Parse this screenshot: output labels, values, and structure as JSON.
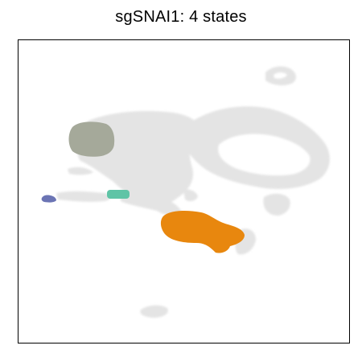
{
  "chart_data": {
    "type": "scatter",
    "title": "sgSNAI1: 4 states",
    "xlabel": "",
    "ylabel": "",
    "ticks": false,
    "grid": false,
    "legend": "none",
    "background_color": "#e3e3e3",
    "series": [
      {
        "color": "#a5a99a",
        "x": [
          2.4,
          3.6
        ],
        "y": [
          6.4,
          7.3
        ]
      },
      {
        "color": "#5fc4a6",
        "x": [
          3.5,
          4.2
        ],
        "y": [
          4.5,
          4.9
        ]
      },
      {
        "color": "#6b74b4",
        "x": [
          0.9,
          1.4
        ],
        "y": [
          4.4,
          4.7
        ]
      },
      {
        "color": "#e8870e",
        "x": [
          5.5,
          8.2
        ],
        "y": [
          2.9,
          4.1
        ]
      }
    ]
  }
}
